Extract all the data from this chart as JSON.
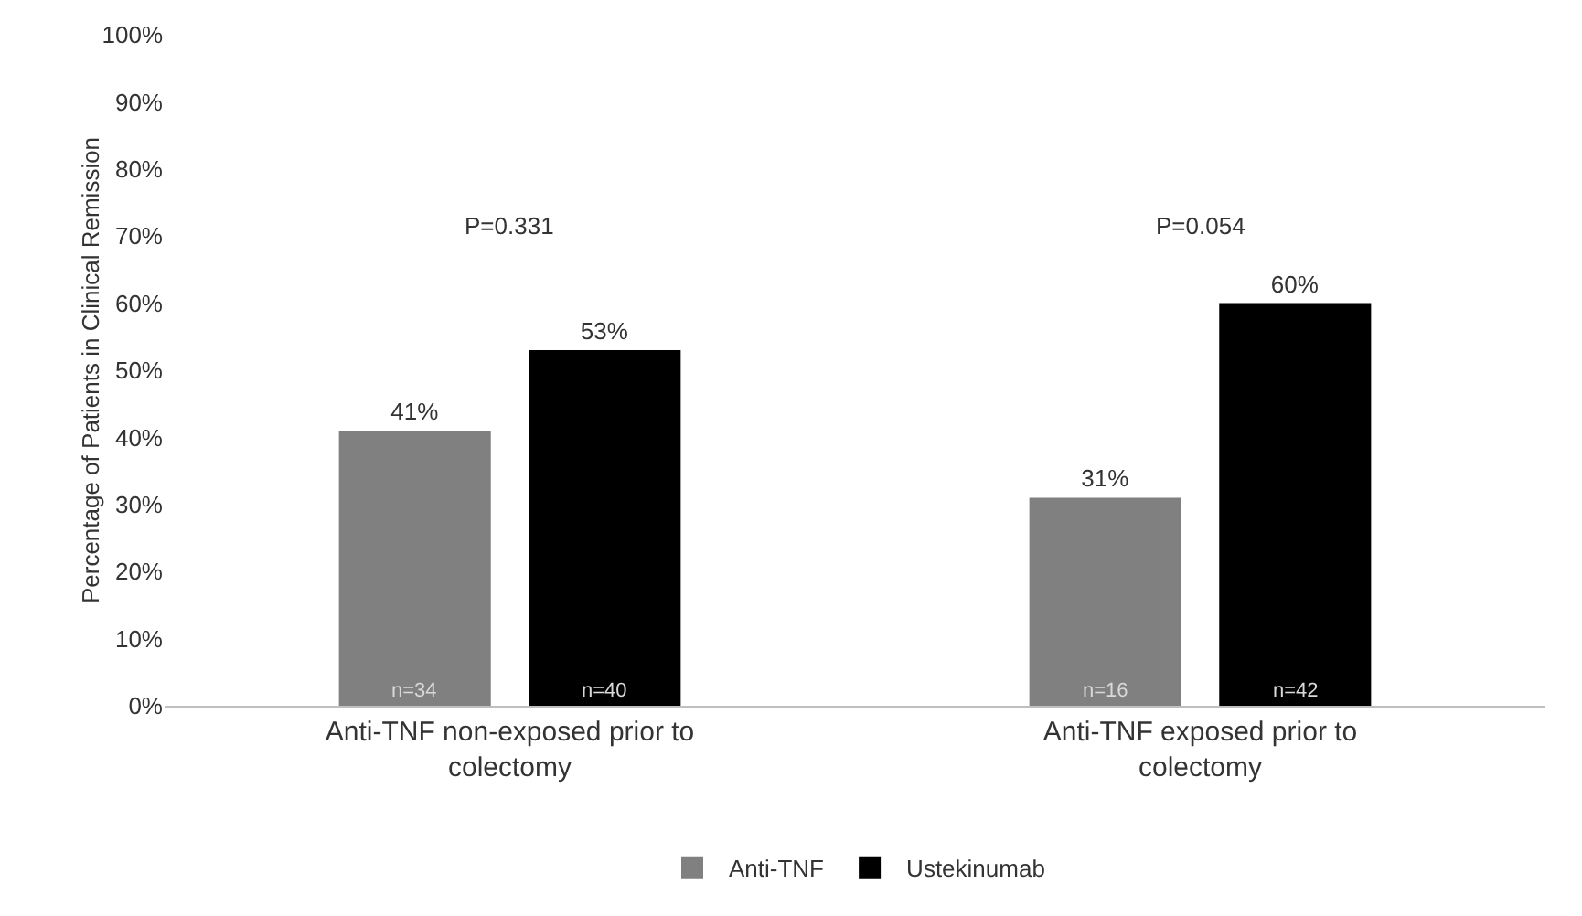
{
  "chart_data": {
    "type": "bar",
    "ylabel": "Percentage of Patients in Clinical Remission",
    "categories": [
      "Anti-TNF non-exposed prior to colectomy",
      "Anti-TNF exposed prior to colectomy"
    ],
    "series": [
      {
        "name": "Anti-TNF",
        "color": "#808080",
        "values": [
          41,
          31
        ],
        "value_labels": [
          "41%",
          "31%"
        ]
      },
      {
        "name": "Ustekinumab",
        "color": "#000000",
        "values": [
          53,
          60
        ],
        "value_labels": [
          "53%",
          "60%"
        ]
      }
    ],
    "ylim": [
      0,
      100
    ],
    "yticks": [
      {
        "value": 0,
        "label": "0%"
      },
      {
        "value": 10,
        "label": "10%"
      },
      {
        "value": 20,
        "label": "20%"
      },
      {
        "value": 30,
        "label": "30%"
      },
      {
        "value": 40,
        "label": "40%"
      },
      {
        "value": 50,
        "label": "50%"
      },
      {
        "value": 60,
        "label": "60%"
      },
      {
        "value": 70,
        "label": "70%"
      },
      {
        "value": 80,
        "label": "80%"
      },
      {
        "value": 90,
        "label": "90%"
      },
      {
        "value": 100,
        "label": "100%"
      }
    ],
    "annotations": [
      "P=0.331",
      "P=0.054",
      "n=34",
      "n=40",
      "n=16",
      "n=42"
    ],
    "grid": false,
    "legend": "bottom"
  }
}
